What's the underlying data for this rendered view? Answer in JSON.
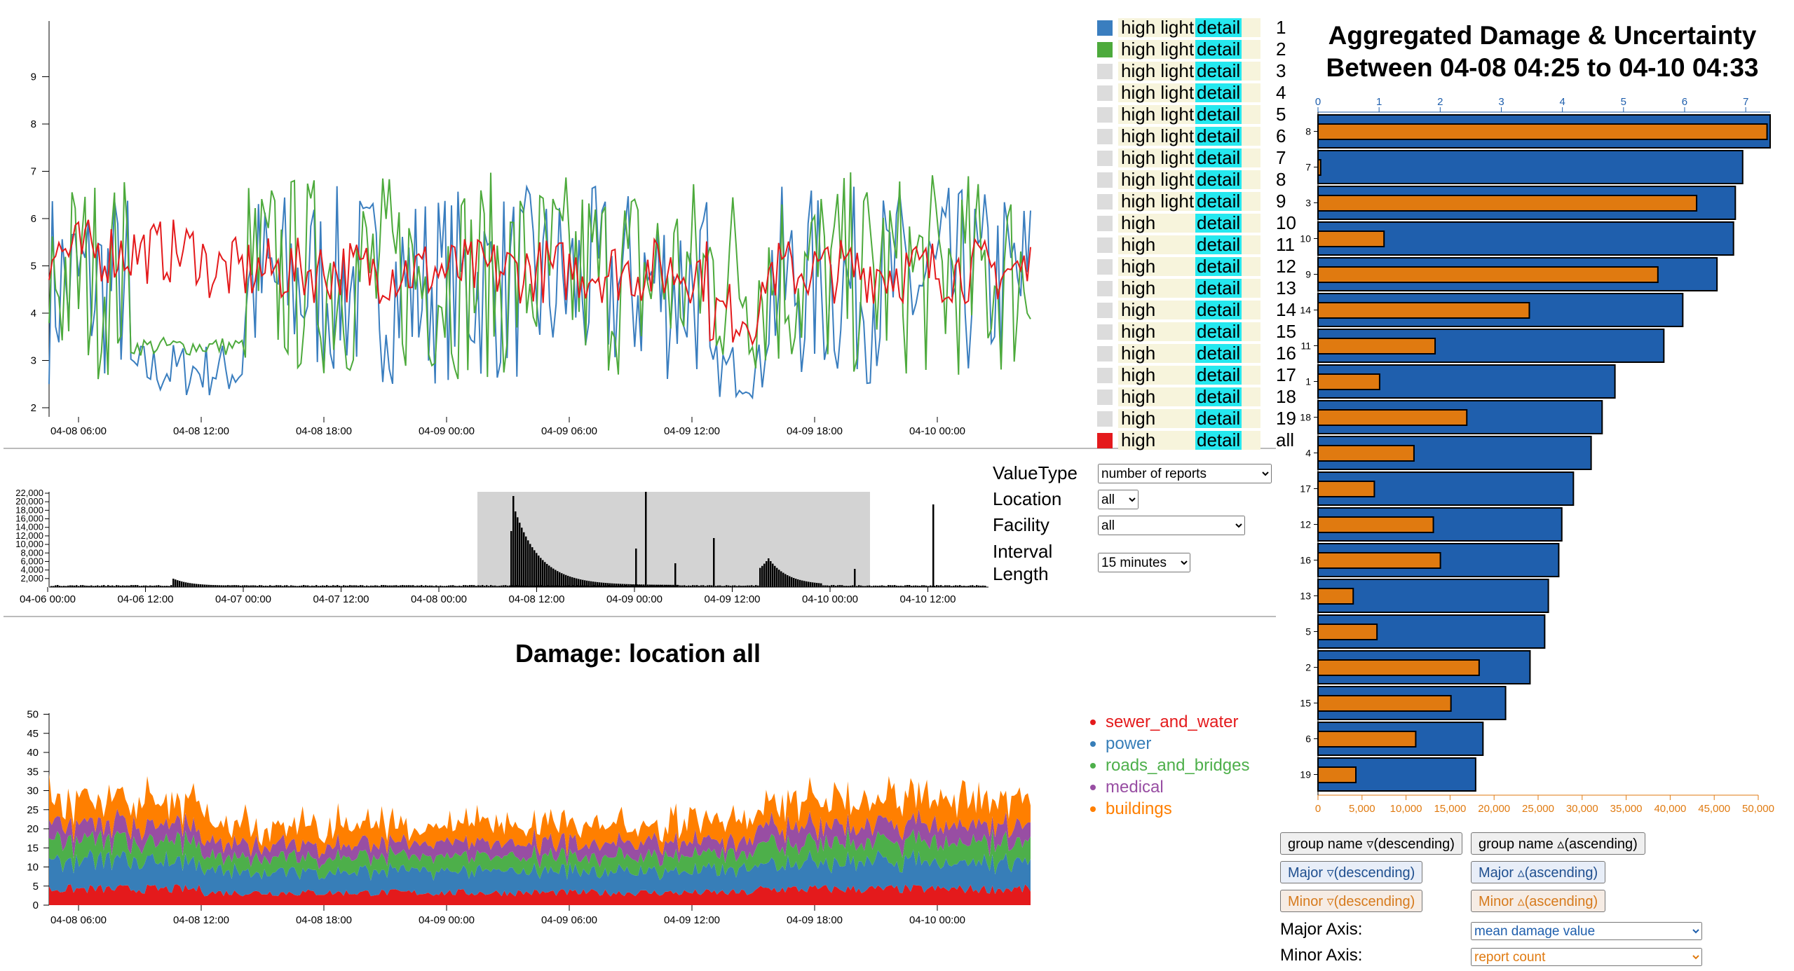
{
  "top_chart": {
    "x_ticks": [
      "04-08 06:00",
      "04-08 12:00",
      "04-08 18:00",
      "04-09 00:00",
      "04-09 06:00",
      "04-09 12:00",
      "04-09 18:00",
      "04-10 00:00"
    ],
    "y_ticks": [
      "2",
      "3",
      "4",
      "5",
      "6",
      "7",
      "8",
      "9"
    ]
  },
  "legend": {
    "items": [
      {
        "label": "high light",
        "detail": "detail",
        "num": "1",
        "color": "#3a7ebf"
      },
      {
        "label": "high light",
        "detail": "detail",
        "num": "2",
        "color": "#4daa3c"
      },
      {
        "label": "high light",
        "detail": "detail",
        "num": "3",
        "color": "#dcdcdc"
      },
      {
        "label": "high light",
        "detail": "detail",
        "num": "4",
        "color": "#dcdcdc"
      },
      {
        "label": "high light",
        "detail": "detail",
        "num": "5",
        "color": "#dcdcdc"
      },
      {
        "label": "high light",
        "detail": "detail",
        "num": "6",
        "color": "#dcdcdc"
      },
      {
        "label": "high light",
        "detail": "detail",
        "num": "7",
        "color": "#dcdcdc"
      },
      {
        "label": "high light",
        "detail": "detail",
        "num": "8",
        "color": "#dcdcdc"
      },
      {
        "label": "high light",
        "detail": "detail",
        "num": "9",
        "color": "#dcdcdc"
      },
      {
        "label": "high",
        "detail": "detail",
        "num": "10",
        "color": "#dcdcdc"
      },
      {
        "label": "high",
        "detail": "detail",
        "num": "11",
        "color": "#dcdcdc"
      },
      {
        "label": "high",
        "detail": "detail",
        "num": "12",
        "color": "#dcdcdc"
      },
      {
        "label": "high",
        "detail": "detail",
        "num": "13",
        "color": "#dcdcdc"
      },
      {
        "label": "high",
        "detail": "detail",
        "num": "14",
        "color": "#dcdcdc"
      },
      {
        "label": "high",
        "detail": "detail",
        "num": "15",
        "color": "#dcdcdc"
      },
      {
        "label": "high",
        "detail": "detail",
        "num": "16",
        "color": "#dcdcdc"
      },
      {
        "label": "high",
        "detail": "detail",
        "num": "17",
        "color": "#dcdcdc"
      },
      {
        "label": "high",
        "detail": "detail",
        "num": "18",
        "color": "#dcdcdc"
      },
      {
        "label": "high",
        "detail": "detail",
        "num": "19",
        "color": "#dcdcdc"
      },
      {
        "label": "high",
        "detail": "detail",
        "num": "all",
        "color": "#e41a1c"
      }
    ]
  },
  "controls": {
    "value_type_label": "ValueType",
    "value_type_value": "number of reports",
    "location_label": "Location",
    "location_value": "all",
    "facility_label": "Facility",
    "facility_value": "all",
    "interval_label": "Interval Length",
    "interval_value": "15 minutes"
  },
  "hist_chart": {
    "x_ticks": [
      "04-06 00:00",
      "04-06 12:00",
      "04-07 00:00",
      "04-07 12:00",
      "04-08 00:00",
      "04-08 12:00",
      "04-09 00:00",
      "04-09 12:00",
      "04-10 00:00",
      "04-10 12:00"
    ],
    "y_ticks": [
      "2,000",
      "4,000",
      "6,000",
      "8,000",
      "10,000",
      "12,000",
      "14,000",
      "16,000",
      "18,000",
      "20,000",
      "22,000"
    ]
  },
  "damage_chart": {
    "title": "Damage: location all",
    "x_ticks": [
      "04-08 06:00",
      "04-08 12:00",
      "04-08 18:00",
      "04-09 00:00",
      "04-09 06:00",
      "04-09 12:00",
      "04-09 18:00",
      "04-10 00:00"
    ],
    "y_ticks": [
      "0",
      "5",
      "10",
      "15",
      "20",
      "25",
      "30",
      "35",
      "40",
      "45",
      "50"
    ],
    "series": [
      {
        "name": "sewer_and_water",
        "color": "#e41a1c"
      },
      {
        "name": "power",
        "color": "#377eb8"
      },
      {
        "name": "roads_and_bridges",
        "color": "#4daf4a"
      },
      {
        "name": "medical",
        "color": "#984ea3"
      },
      {
        "name": "buildings",
        "color": "#ff7f00"
      }
    ]
  },
  "agg": {
    "title_line1": "Aggregated Damage & Uncertainty",
    "title_line2": "Between 04-08 04:25 to 04-10 04:33",
    "major_ticks": [
      "0",
      "1",
      "2",
      "3",
      "4",
      "5",
      "6",
      "7"
    ],
    "minor_ticks": [
      "0",
      "5,000",
      "10,000",
      "15,000",
      "20,000",
      "25,000",
      "30,000",
      "35,000",
      "40,000",
      "45,000",
      "50,000"
    ],
    "major_color": "#1f5fad",
    "minor_color": "#e07a10"
  },
  "chart_data": [
    {
      "type": "bar",
      "title": "Aggregated Damage & Uncertainty Between 04-08 04:25 to 04-10 04:33",
      "categories": [
        "8",
        "7",
        "3",
        "10",
        "9",
        "14",
        "11",
        "1",
        "18",
        "4",
        "17",
        "12",
        "16",
        "13",
        "5",
        "2",
        "15",
        "6",
        "19"
      ],
      "series": [
        {
          "name": "mean damage value",
          "values": [
            7.4,
            6.95,
            6.83,
            6.8,
            6.53,
            5.97,
            5.66,
            4.86,
            4.65,
            4.47,
            4.18,
            3.99,
            3.94,
            3.77,
            3.71,
            3.47,
            3.07,
            2.7,
            2.58
          ]
        },
        {
          "name": "report count",
          "values": [
            51000,
            300,
            43000,
            7500,
            38600,
            24000,
            13300,
            7000,
            16900,
            10900,
            6400,
            13100,
            13900,
            4000,
            6700,
            18300,
            15100,
            11100,
            4300
          ]
        }
      ],
      "major_range": [
        0,
        7.4
      ],
      "minor_range": [
        0,
        50000
      ]
    },
    {
      "type": "area",
      "title": "Damage: location all",
      "x": [
        "04-08 06:00",
        "04-08 12:00",
        "04-08 18:00",
        "04-09 00:00",
        "04-09 06:00",
        "04-09 12:00",
        "04-09 18:00",
        "04-10 00:00"
      ],
      "series": [
        {
          "name": "sewer_and_water",
          "values": [
            4.5,
            4.2,
            3.8,
            4.2,
            4.0,
            4.2,
            4.0,
            4.3
          ]
        },
        {
          "name": "power",
          "values": [
            7.5,
            7.3,
            6.0,
            7.5,
            7.0,
            7.5,
            7.0,
            7.5
          ]
        },
        {
          "name": "roads_and_bridges",
          "values": [
            5.5,
            5.0,
            4.0,
            5.5,
            5.0,
            5.5,
            4.0,
            5.5
          ]
        },
        {
          "name": "medical",
          "values": [
            5.0,
            4.5,
            3.0,
            5.0,
            4.0,
            5.0,
            4.0,
            5.0
          ]
        },
        {
          "name": "buildings",
          "values": [
            5.0,
            4.0,
            3.0,
            6.0,
            5.0,
            6.0,
            4.0,
            6.0
          ]
        }
      ],
      "ylim": [
        0,
        50
      ]
    }
  ]
}
